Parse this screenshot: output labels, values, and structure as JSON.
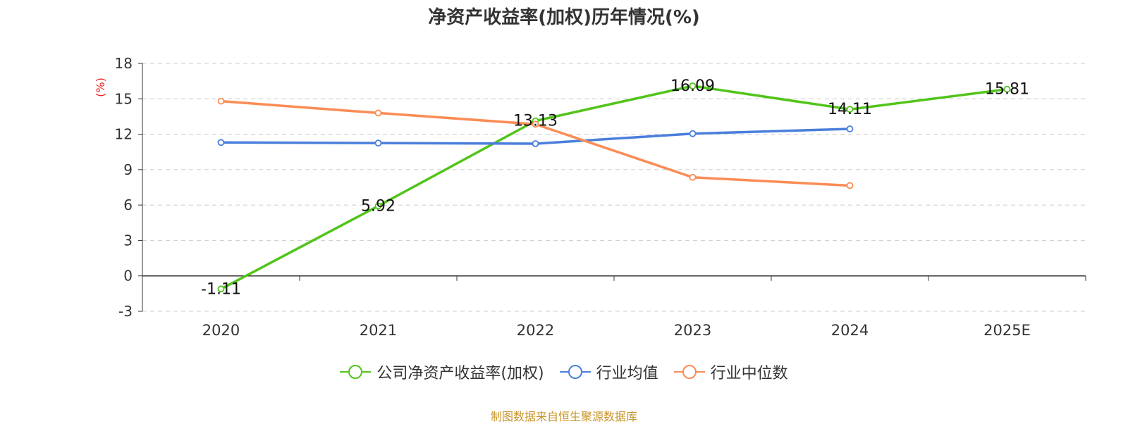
{
  "source_text": "制图数据来自恒生聚源数据库",
  "chart_data": {
    "type": "line",
    "title": "净资产收益率(加权)历年情况(%)",
    "ylabel": "(%)",
    "xlabel": "",
    "categories": [
      "2020",
      "2021",
      "2022",
      "2023",
      "2024",
      "2025E"
    ],
    "ylim": [
      -3,
      18
    ],
    "yticks": [
      -3,
      0,
      3,
      6,
      9,
      12,
      15,
      18
    ],
    "grid": true,
    "legend_position": "bottom",
    "series": [
      {
        "name": "公司净资产收益率(加权)",
        "color": "#52c41a",
        "values": [
          -1.11,
          5.92,
          13.13,
          16.09,
          14.11,
          15.81
        ],
        "labels": [
          "-1.11",
          "5.92",
          "13.13",
          "16.09",
          "14.11",
          "15.81"
        ]
      },
      {
        "name": "行业均值",
        "color": "#4a7fdb",
        "values": [
          11.3,
          11.25,
          11.2,
          12.05,
          12.45,
          null
        ]
      },
      {
        "name": "行业中位数",
        "color": "#fb8c55",
        "values": [
          14.8,
          13.8,
          12.85,
          8.35,
          7.65,
          null
        ]
      }
    ]
  }
}
